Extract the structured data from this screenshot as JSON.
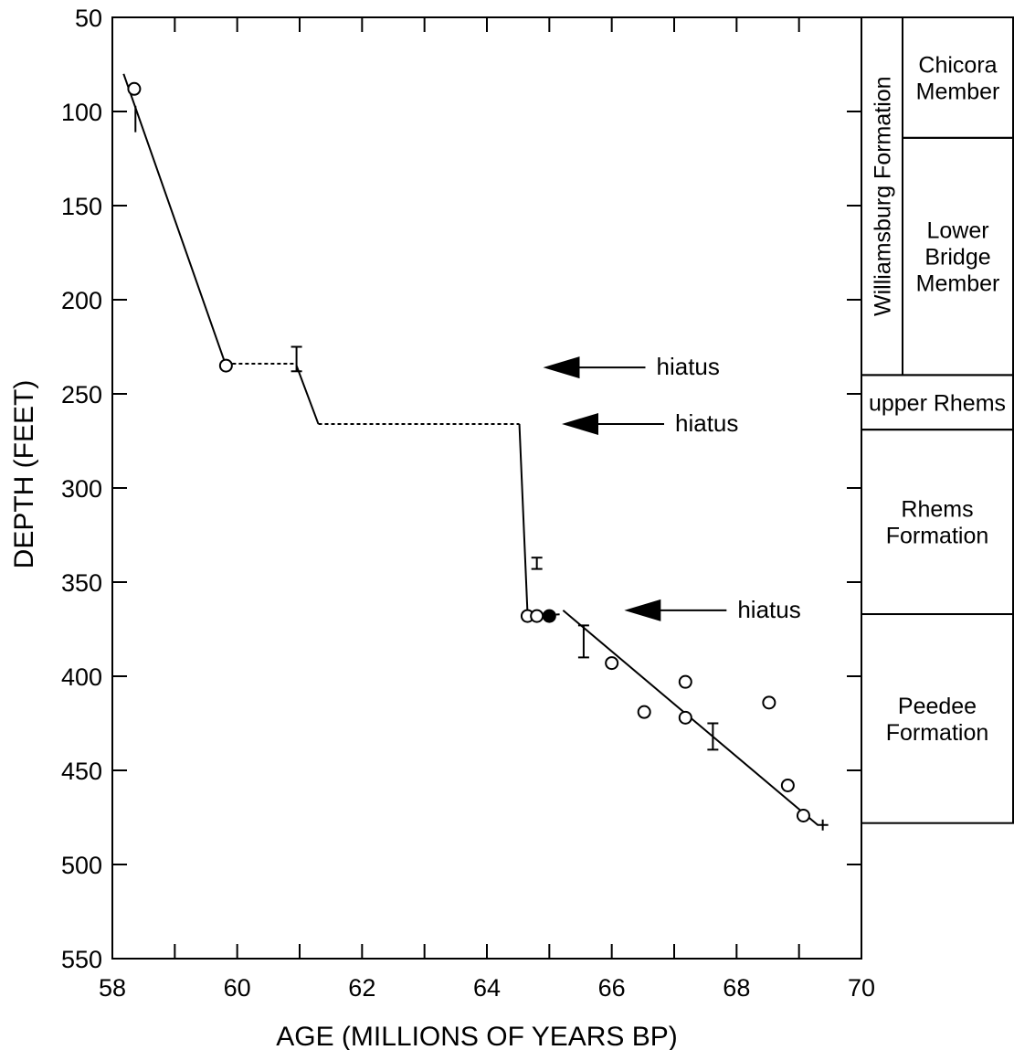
{
  "chart_data": {
    "type": "scatter",
    "title": "",
    "xlabel": "AGE (MILLIONS OF YEARS BP)",
    "ylabel": "DEPTH (FEET)",
    "xlim": [
      58,
      70
    ],
    "ylim": [
      50,
      550
    ],
    "y_inverted": true,
    "x_ticks": [
      58,
      60,
      62,
      64,
      66,
      68,
      70
    ],
    "x_minor_ticks": [
      59,
      61,
      63,
      65,
      67,
      69
    ],
    "y_ticks": [
      50,
      100,
      150,
      200,
      250,
      300,
      350,
      400,
      450,
      500,
      550
    ],
    "grid": false,
    "open_circles": [
      {
        "x": 58.35,
        "y": 88
      },
      {
        "x": 59.82,
        "y": 235
      },
      {
        "x": 64.65,
        "y": 368
      },
      {
        "x": 64.8,
        "y": 368
      },
      {
        "x": 66.0,
        "y": 393
      },
      {
        "x": 66.52,
        "y": 419
      },
      {
        "x": 67.18,
        "y": 403
      },
      {
        "x": 67.18,
        "y": 422
      },
      {
        "x": 68.52,
        "y": 414
      },
      {
        "x": 68.82,
        "y": 458
      },
      {
        "x": 69.07,
        "y": 474
      }
    ],
    "filled_circles": [
      {
        "x": 65.0,
        "y": 368
      }
    ],
    "plus_markers": [
      {
        "x": 69.38,
        "y": 479
      }
    ],
    "range_bars": [
      {
        "x": 58.37,
        "y_top": 97,
        "y_bottom": 111,
        "caps": "none"
      },
      {
        "x": 60.95,
        "y_top": 225,
        "y_bottom": 238,
        "caps": "both"
      },
      {
        "x": 64.8,
        "y_top": 337,
        "y_bottom": 343,
        "caps": "both"
      },
      {
        "x": 65.55,
        "y_top": 373,
        "y_bottom": 390,
        "caps": "both"
      },
      {
        "x": 67.62,
        "y_top": 425,
        "y_bottom": 439,
        "caps": "both"
      }
    ],
    "solid_lines": [
      [
        {
          "x": 58.18,
          "y": 80
        },
        {
          "x": 59.82,
          "y": 235
        }
      ],
      [
        {
          "x": 60.95,
          "y": 235
        },
        {
          "x": 61.3,
          "y": 266
        }
      ],
      [
        {
          "x": 64.52,
          "y": 266
        },
        {
          "x": 64.65,
          "y": 366
        }
      ],
      [
        {
          "x": 65.22,
          "y": 365
        },
        {
          "x": 69.3,
          "y": 479
        }
      ]
    ],
    "dashed_lines": [
      [
        {
          "x": 59.82,
          "y": 234
        },
        {
          "x": 60.95,
          "y": 234
        }
      ],
      [
        {
          "x": 61.3,
          "y": 266
        },
        {
          "x": 64.52,
          "y": 266
        }
      ],
      [
        {
          "x": 64.8,
          "y": 368
        },
        {
          "x": 65.2,
          "y": 367
        }
      ]
    ],
    "annotations": [
      {
        "text": "hiatus",
        "arrow_tip": {
          "x": 64.9,
          "y": 236
        }
      },
      {
        "text": "hiatus",
        "arrow_tip": {
          "x": 65.2,
          "y": 266
        }
      },
      {
        "text": "hiatus",
        "arrow_tip": {
          "x": 66.2,
          "y": 365
        }
      }
    ]
  },
  "stratigraphy": {
    "formation_column": [
      {
        "label": "Williamsburg Formation",
        "top": 50,
        "bottom": 240
      },
      {
        "label": "upper Rhems",
        "top": 240,
        "bottom": 269
      },
      {
        "label": "Rhems Formation",
        "top": 269,
        "bottom": 367
      },
      {
        "label": "Peedee Formation",
        "top": 367,
        "bottom": 478
      }
    ],
    "member_column": [
      {
        "label": "Chicora Member",
        "top": 50,
        "bottom": 114
      },
      {
        "label": "Lower Bridge Member",
        "top": 114,
        "bottom": 240
      }
    ]
  }
}
